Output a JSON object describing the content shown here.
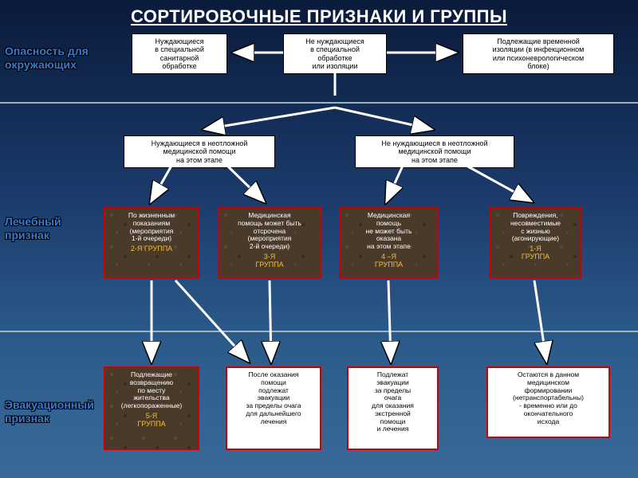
{
  "title": "СОРТИРОВОЧНЫЕ ПРИЗНАКИ И ГРУППЫ",
  "labels": {
    "danger": "Опасность для\nокружающих",
    "medical": "Лечебный\nпризнак",
    "evac": "Эвакуационный\nпризнак"
  },
  "row1": {
    "b1": "Нуждающиеся\nв специальной\nсанитарной\nобработке",
    "b2": "Не нуждающиеся\nв специальной\nобработке\nили изоляции",
    "b3": "Подлежащие временной\nизоляции (в инфекционном\nили психоневрологическом\nблоке)"
  },
  "row2": {
    "b1": "Нуждающиеся в неотложной\nмедицинской помощи\nна этом этапе",
    "b2": "Не нуждающиеся в неотложной\nмедицинской помощи\nна этом этапе"
  },
  "row3": {
    "b1": {
      "text": "По жизненным\nпоказаниям\n(мероприятия\n1-й очереди)",
      "grp": "2-Я ГРУППА"
    },
    "b2": {
      "text": "Медицинская\nпомощь может быть\nотсрочена\n(мероприятия\n2-й очереди)",
      "grp": "3-Я\nГРУППА"
    },
    "b3": {
      "text": "Медицинская\nпомощь\nне может быть\nоказана\nна этом этапе",
      "grp": "4 –Я\nГРУППА"
    },
    "b4": {
      "text": "Повреждения,\nнесовместимые\nс жизнью\n(агонирующие)",
      "grp": "1-Я\nГРУППА"
    }
  },
  "row4": {
    "b1": {
      "text": "Подлежащие\nвозвращению\nпо месту\nжительства\n(легкопораженные)",
      "grp": "5-Я\nГРУППА"
    },
    "b2": "После оказания\nпомощи\nподлежат\nэвакуации\nза пределы очага\nдля дальнейшего\nлечения",
    "b3": "Подлежат\nэвакуации\nза пределы\nочага\nдля оказания\nэкстренной\nпомощи\nи лечения",
    "b4": "Остаются в данном\nмедицинском\nформировании\n(нетранспортабельны)\n- временно или до\nокончательного\nисхода"
  },
  "colors": {
    "arrow": "#ffffff",
    "arrowStroke": "#000000"
  }
}
